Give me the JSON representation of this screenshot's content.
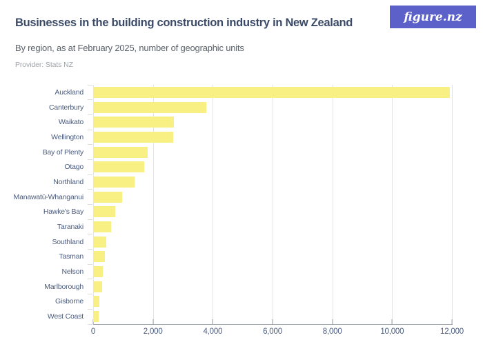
{
  "header": {
    "title": "Businesses in the building construction industry in New Zealand",
    "subtitle": "By region, as at February 2025, number of geographic units",
    "provider": "Provider: Stats NZ",
    "logo_text": "figure.nz"
  },
  "colors": {
    "title": "#3B4A68",
    "subtitle": "#5A6169",
    "provider": "#9EA3A9",
    "logo_bg": "#5B61C9",
    "logo_text": "#FFFFFF",
    "bar": "#F8F083",
    "gridline": "#E4E4E4",
    "axis": "#9BA0A8",
    "axis_label": "#4A5B7D"
  },
  "chart_data": {
    "type": "bar",
    "orientation": "horizontal",
    "title": "Businesses in the building construction industry in New Zealand",
    "subtitle": "By region, as at February 2025, number of geographic units",
    "xlabel": "",
    "ylabel": "",
    "categories": [
      "Auckland",
      "Canterbury",
      "Waikato",
      "Wellington",
      "Bay of Plenty",
      "Otago",
      "Northland",
      "Manawatū-Whanganui",
      "Hawke's Bay",
      "Taranaki",
      "Southland",
      "Tasman",
      "Nelson",
      "Marlborough",
      "Gisborne",
      "West Coast"
    ],
    "values": [
      11940,
      3780,
      2710,
      2680,
      1820,
      1700,
      1390,
      960,
      740,
      590,
      430,
      390,
      320,
      290,
      200,
      185
    ],
    "xlim": [
      0,
      12000
    ],
    "x_ticks": [
      0,
      2000,
      4000,
      6000,
      8000,
      10000,
      12000
    ],
    "x_tick_labels": [
      "0",
      "2,000",
      "4,000",
      "6,000",
      "8,000",
      "10,000",
      "12,000"
    ],
    "grid": "vertical",
    "legend": "none"
  }
}
